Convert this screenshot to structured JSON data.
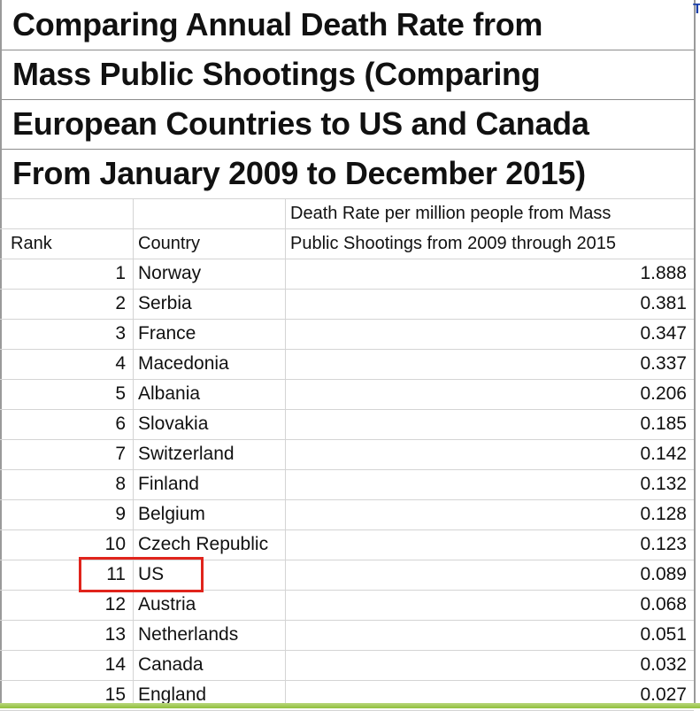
{
  "chart_data": {
    "type": "table",
    "title_lines": [
      "Comparing Annual Death Rate from",
      "Mass Public Shootings (Comparing",
      "European Countries to US and Canada",
      "From January 2009 to December 2015)"
    ],
    "columns": {
      "rank": "Rank",
      "country": "Country",
      "rate_line1": "Death Rate per million people from Mass",
      "rate_line2": "Public Shootings from 2009 through 2015"
    },
    "rows": [
      {
        "rank": "1",
        "country": "Norway",
        "rate": "1.888"
      },
      {
        "rank": "2",
        "country": "Serbia",
        "rate": "0.381"
      },
      {
        "rank": "3",
        "country": "France",
        "rate": "0.347"
      },
      {
        "rank": "4",
        "country": "Macedonia",
        "rate": "0.337"
      },
      {
        "rank": "5",
        "country": "Albania",
        "rate": "0.206"
      },
      {
        "rank": "6",
        "country": "Slovakia",
        "rate": "0.185"
      },
      {
        "rank": "7",
        "country": "Switzerland",
        "rate": "0.142"
      },
      {
        "rank": "8",
        "country": "Finland",
        "rate": "0.132"
      },
      {
        "rank": "9",
        "country": "Belgium",
        "rate": "0.128"
      },
      {
        "rank": "10",
        "country": "Czech Republic",
        "rate": "0.123"
      },
      {
        "rank": "11",
        "country": "US",
        "rate": "0.089"
      },
      {
        "rank": "12",
        "country": "Austria",
        "rate": "0.068"
      },
      {
        "rank": "13",
        "country": "Netherlands",
        "rate": "0.051"
      },
      {
        "rank": "14",
        "country": "Canada",
        "rate": "0.032"
      },
      {
        "rank": "15",
        "country": "England",
        "rate": "0.027"
      }
    ],
    "highlighted_row_rank": "11",
    "highlight_color": "#e0241c"
  },
  "corner_glyph": "T"
}
